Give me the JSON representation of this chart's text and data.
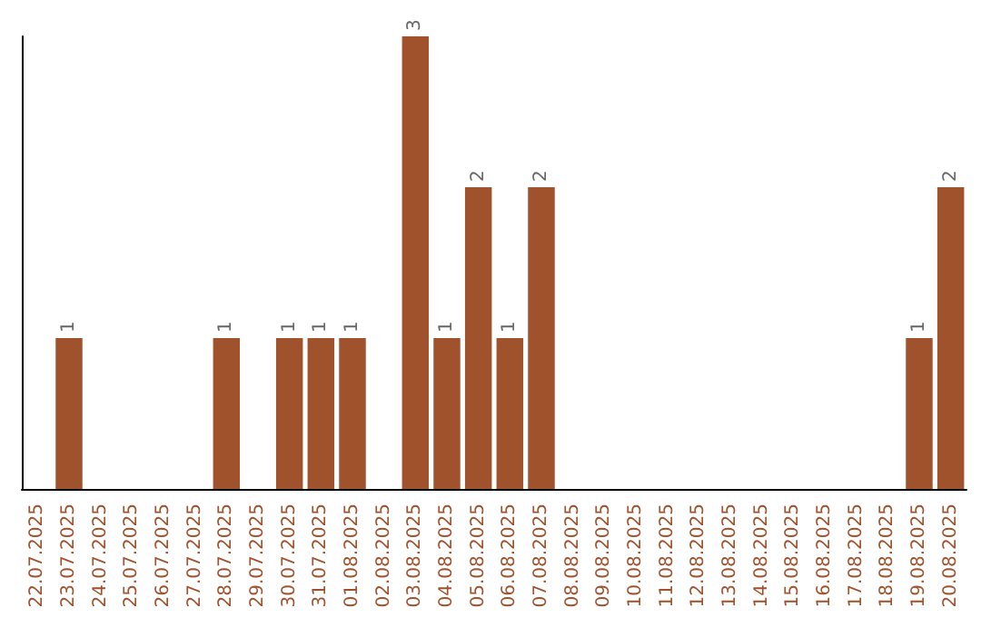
{
  "chart_data": {
    "type": "bar",
    "categories": [
      "22.07.2025",
      "23.07.2025",
      "24.07.2025",
      "25.07.2025",
      "26.07.2025",
      "27.07.2025",
      "28.07.2025",
      "29.07.2025",
      "30.07.2025",
      "31.07.2025",
      "01.08.2025",
      "02.08.2025",
      "03.08.2025",
      "04.08.2025",
      "05.08.2025",
      "06.08.2025",
      "07.08.2025",
      "08.08.2025",
      "09.08.2025",
      "10.08.2025",
      "11.08.2025",
      "12.08.2025",
      "13.08.2025",
      "14.08.2025",
      "15.08.2025",
      "16.08.2025",
      "17.08.2025",
      "18.08.2025",
      "19.08.2025",
      "20.08.2025"
    ],
    "values": [
      0,
      1,
      0,
      0,
      0,
      0,
      1,
      0,
      1,
      1,
      1,
      0,
      3,
      1,
      2,
      1,
      2,
      0,
      0,
      0,
      0,
      0,
      0,
      0,
      0,
      0,
      0,
      0,
      1,
      2
    ],
    "value_labels": [
      null,
      "1",
      null,
      null,
      null,
      null,
      "1",
      null,
      "1",
      "1",
      "1",
      null,
      "3",
      "1",
      "2",
      "1",
      "2",
      null,
      null,
      null,
      null,
      null,
      null,
      null,
      null,
      null,
      null,
      null,
      "1",
      "2"
    ],
    "color": "#a0522d",
    "grid": false,
    "tick_labels": "x"
  }
}
